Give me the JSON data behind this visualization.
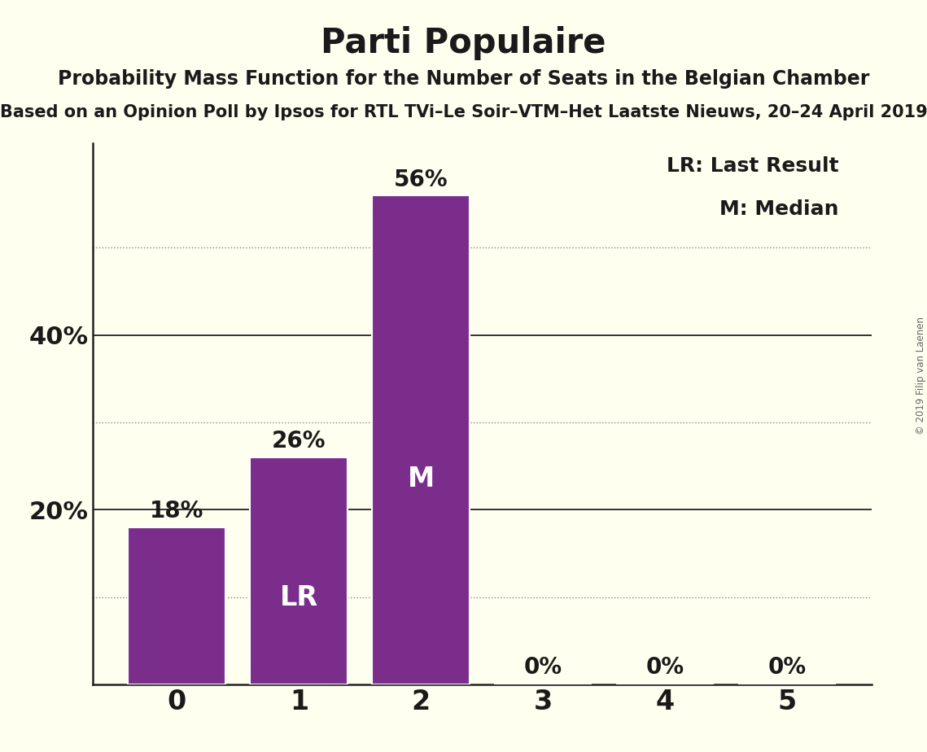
{
  "title": "Parti Populaire",
  "subtitle": "Probability Mass Function for the Number of Seats in the Belgian Chamber",
  "subtitle2": "Based on an Opinion Poll by Ipsos for RTL TVi–Le Soir–VTM–Het Laatste Nieuws, 20–24 April 2019",
  "watermark": "© 2019 Filip van Laenen",
  "categories": [
    0,
    1,
    2,
    3,
    4,
    5
  ],
  "values": [
    0.18,
    0.26,
    0.56,
    0.0,
    0.0,
    0.0
  ],
  "bar_color": "#7B2D8B",
  "bar_edge_color": "white",
  "background_color": "#FFFFF0",
  "text_color": "#1a1a1a",
  "label_inside_color": "white",
  "yticks": [
    0.2,
    0.4
  ],
  "ytick_labels": [
    "20%",
    "40%"
  ],
  "ylim": [
    0,
    0.62
  ],
  "dotted_lines": [
    0.1,
    0.3,
    0.5
  ],
  "solid_lines": [
    0.2,
    0.4
  ],
  "lr_bar": 1,
  "median_bar": 2,
  "legend_lr": "LR: Last Result",
  "legend_m": "M: Median",
  "title_fontsize": 30,
  "subtitle_fontsize": 17,
  "subtitle2_fontsize": 15,
  "bar_label_fontsize": 20,
  "inside_label_fontsize": 24,
  "ytick_fontsize": 22,
  "xtick_fontsize": 24,
  "legend_fontsize": 18
}
